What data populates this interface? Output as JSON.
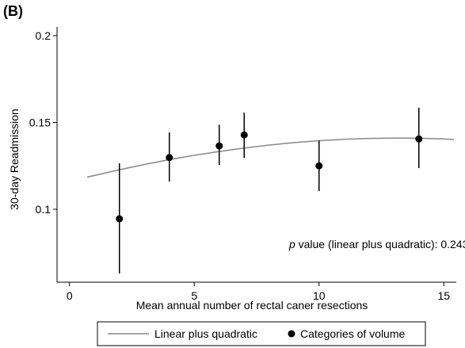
{
  "panel_label": "(B)",
  "chart_data": {
    "type": "scatter",
    "xlabel": "Mean annual number of rectal caner resections",
    "ylabel": "30-day Readmission",
    "xlim": [
      -0.5,
      15.5
    ],
    "ylim": [
      0.058,
      0.205
    ],
    "x_ticks": [
      0,
      5,
      10,
      15
    ],
    "x_tick_labels": [
      "0",
      "5",
      "10",
      "15"
    ],
    "y_ticks": [
      0.1,
      0.15,
      0.2
    ],
    "y_tick_labels": [
      "0.1",
      "0.15",
      "0.2"
    ],
    "grid": false,
    "legend_position": "bottom",
    "annotation": {
      "italic": "p",
      "text": " value (linear plus quadratic): 0.243",
      "x": 8.8,
      "y": 0.08
    },
    "series": [
      {
        "name": "Linear plus quadratic",
        "kind": "line",
        "color": "#888888",
        "x": [
          0.7,
          2,
          3,
          4,
          5,
          6,
          7,
          8,
          9,
          10,
          11,
          12,
          13,
          14,
          15,
          15.4
        ],
        "y": [
          0.1185,
          0.1228,
          0.1258,
          0.1286,
          0.1311,
          0.1333,
          0.1353,
          0.137,
          0.1384,
          0.1395,
          0.1403,
          0.1408,
          0.141,
          0.1409,
          0.1405,
          0.1402
        ]
      },
      {
        "name": "Categories of volume",
        "kind": "points",
        "color": "#000000",
        "x": [
          2,
          4,
          6,
          7,
          10,
          14
        ],
        "y": [
          0.0945,
          0.1298,
          0.1365,
          0.1428,
          0.125,
          0.1405
        ],
        "y_low": [
          0.063,
          0.116,
          0.1255,
          0.1295,
          0.1105,
          0.1237
        ],
        "y_high": [
          0.1265,
          0.1443,
          0.1487,
          0.1557,
          0.1395,
          0.1585
        ]
      }
    ]
  }
}
